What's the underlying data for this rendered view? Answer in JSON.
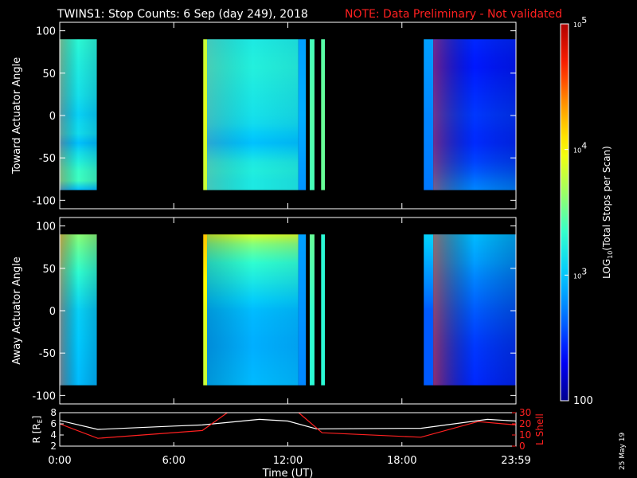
{
  "header": {
    "title": "TWINS1: Stop Counts:  6 Sep (day 249), 2018",
    "note": "NOTE: Data Preliminary - Not validated"
  },
  "footer": {
    "date_stamp": "25 May 19"
  },
  "colors": {
    "background": "#000000",
    "axis": "#ffffff",
    "note": "#ff2020",
    "lshell": "#ff2020",
    "radius": "#ffffff",
    "colormap": [
      "#00008f",
      "#0000ff",
      "#0070ff",
      "#00c8ff",
      "#30ffd0",
      "#a0ff60",
      "#ffff00",
      "#ffa000",
      "#ff2000",
      "#b00000"
    ]
  },
  "chart_data": [
    {
      "type": "heatmap",
      "ylabel": "Toward Actuator Angle",
      "ylim": [
        -110,
        110
      ],
      "yticks": [
        100,
        50,
        0,
        -50,
        -100
      ],
      "ytick_labels": [
        "100",
        "50",
        "0",
        "-50",
        "-100"
      ],
      "xlim": [
        0,
        24
      ],
      "x_units": "hours UT",
      "data_y_range": [
        -88,
        90
      ],
      "data_segments": [
        {
          "x0": 0.0,
          "x1": 1.95,
          "profile": [
            [
              -88,
              2.95
            ],
            [
              -80,
              3.25
            ],
            [
              -75,
              3.45
            ],
            [
              -60,
              3.3
            ],
            [
              -45,
              3.15
            ],
            [
              -35,
              3.05
            ],
            [
              -30,
              2.9
            ],
            [
              -20,
              3.15
            ],
            [
              0,
              3.05
            ],
            [
              25,
              3.15
            ],
            [
              50,
              3.2
            ],
            [
              70,
              3.25
            ],
            [
              90,
              3.3
            ]
          ],
          "tgrad": 0.35
        },
        {
          "x0": 7.55,
          "x1": 7.75,
          "profile": [
            [
              -88,
              3.8
            ],
            [
              0,
              3.9
            ],
            [
              90,
              3.8
            ]
          ],
          "tgrad": 0
        },
        {
          "x0": 7.75,
          "x1": 12.55,
          "profile": [
            [
              -88,
              3.2
            ],
            [
              -75,
              3.2
            ],
            [
              -60,
              3.25
            ],
            [
              -40,
              3.05
            ],
            [
              -30,
              2.95
            ],
            [
              -15,
              3.1
            ],
            [
              0,
              3.15
            ],
            [
              30,
              3.2
            ],
            [
              60,
              3.25
            ],
            [
              90,
              3.2
            ]
          ],
          "tgrad": 0.18
        },
        {
          "x0": 12.55,
          "x1": 12.95,
          "profile": [
            [
              -88,
              2.8
            ],
            [
              0,
              2.9
            ],
            [
              90,
              2.85
            ]
          ],
          "tgrad": 0
        },
        {
          "x0": 13.15,
          "x1": 13.4,
          "profile": [
            [
              -88,
              3.4
            ],
            [
              0,
              3.45
            ],
            [
              90,
              3.4
            ]
          ],
          "tgrad": 0
        },
        {
          "x0": 13.75,
          "x1": 13.95,
          "profile": [
            [
              -88,
              3.5
            ],
            [
              0,
              3.5
            ],
            [
              90,
              3.45
            ]
          ],
          "tgrad": 0
        },
        {
          "x0": 19.15,
          "x1": 19.65,
          "profile": [
            [
              -88,
              2.7
            ],
            [
              0,
              2.75
            ],
            [
              90,
              2.85
            ]
          ],
          "tgrad": 0
        },
        {
          "x0": 19.65,
          "x1": 24.0,
          "profile": [
            [
              -88,
              2.75
            ],
            [
              -60,
              2.55
            ],
            [
              -30,
              2.45
            ],
            [
              0,
              2.5
            ],
            [
              30,
              2.45
            ],
            [
              60,
              2.4
            ],
            [
              90,
              2.45
            ]
          ],
          "tgrad": 0.45
        }
      ]
    },
    {
      "type": "heatmap",
      "ylabel": "Away Actuator Angle",
      "ylim": [
        -110,
        110
      ],
      "yticks": [
        100,
        50,
        0,
        -50,
        -100
      ],
      "ytick_labels": [
        "100",
        "50",
        "0",
        "-50",
        "-100"
      ],
      "xlim": [
        0,
        24
      ],
      "x_units": "hours UT",
      "data_y_range": [
        -88,
        90
      ],
      "data_segments": [
        {
          "x0": 0.0,
          "x1": 1.95,
          "profile": [
            [
              -88,
              2.95
            ],
            [
              -40,
              3.0
            ],
            [
              0,
              3.05
            ],
            [
              25,
              3.2
            ],
            [
              50,
              3.35
            ],
            [
              75,
              3.5
            ],
            [
              90,
              3.6
            ]
          ],
          "tgrad": 0.45
        },
        {
          "x0": 7.55,
          "x1": 7.75,
          "profile": [
            [
              -88,
              3.8
            ],
            [
              0,
              3.9
            ],
            [
              90,
              4.2
            ]
          ],
          "tgrad": 0
        },
        {
          "x0": 7.75,
          "x1": 12.55,
          "profile": [
            [
              -88,
              2.95
            ],
            [
              -40,
              2.9
            ],
            [
              0,
              2.95
            ],
            [
              30,
              3.15
            ],
            [
              60,
              3.35
            ],
            [
              80,
              3.6
            ],
            [
              90,
              3.85
            ]
          ],
          "tgrad": -0.2
        },
        {
          "x0": 12.55,
          "x1": 12.95,
          "profile": [
            [
              -88,
              2.75
            ],
            [
              0,
              2.8
            ],
            [
              90,
              2.85
            ]
          ],
          "tgrad": 0
        },
        {
          "x0": 13.15,
          "x1": 13.4,
          "profile": [
            [
              -88,
              3.3
            ],
            [
              0,
              3.35
            ],
            [
              90,
              3.5
            ]
          ],
          "tgrad": 0
        },
        {
          "x0": 13.75,
          "x1": 13.95,
          "profile": [
            [
              -88,
              3.3
            ],
            [
              0,
              3.3
            ],
            [
              90,
              3.3
            ]
          ],
          "tgrad": 0
        },
        {
          "x0": 19.15,
          "x1": 19.65,
          "profile": [
            [
              -88,
              2.6
            ],
            [
              0,
              2.6
            ],
            [
              90,
              3.05
            ]
          ],
          "tgrad": 0
        },
        {
          "x0": 19.65,
          "x1": 24.0,
          "profile": [
            [
              -88,
              2.45
            ],
            [
              -40,
              2.5
            ],
            [
              0,
              2.6
            ],
            [
              30,
              2.7
            ],
            [
              60,
              2.85
            ],
            [
              90,
              2.95
            ]
          ],
          "tgrad": 0.55
        }
      ]
    },
    {
      "type": "colorbar",
      "label": "LOG10(Total Stops per Scan)",
      "label_parts": [
        "LOG",
        "10",
        "(Total Stops per Scan)"
      ],
      "scale": "log",
      "range": [
        100,
        100000
      ],
      "ticks": [
        {
          "value": 100000,
          "base": "10",
          "exp": "5"
        },
        {
          "value": 10000,
          "base": "10",
          "exp": "4"
        },
        {
          "value": 1000,
          "base": "10",
          "exp": "3"
        },
        {
          "value": 100,
          "label": "100"
        }
      ]
    },
    {
      "type": "line",
      "xlabel": "Time (UT)",
      "xticks": [
        0,
        6,
        12,
        18,
        24
      ],
      "xtick_labels": [
        "0:00",
        "6:00",
        "12:00",
        "18:00",
        "23:59"
      ],
      "left_axis": {
        "label_parts": [
          "R [R",
          "E",
          "]"
        ],
        "ylim": [
          2,
          8
        ],
        "ticks": [
          2,
          4,
          6,
          8
        ],
        "tick_labels": [
          "2",
          "4",
          "6",
          "8"
        ]
      },
      "right_axis": {
        "label": "L Shell",
        "ylim": [
          0,
          30
        ],
        "ticks": [
          0,
          10,
          20,
          30
        ],
        "tick_labels": [
          "0",
          "10",
          "20",
          "30"
        ]
      },
      "series": [
        {
          "name": "R [RE]",
          "axis": "left",
          "x": [
            0,
            2.0,
            6.0,
            7.5,
            10.5,
            12.0,
            13.5,
            19.0,
            22.5,
            24.0
          ],
          "y": [
            6.6,
            5.0,
            5.6,
            5.8,
            6.8,
            6.5,
            5.1,
            5.2,
            6.8,
            6.5
          ]
        },
        {
          "name": "L Shell",
          "axis": "right",
          "x": [
            0,
            2.0,
            7.5,
            8.9,
            12.5,
            13.8,
            19.0,
            22.0,
            24.0
          ],
          "y": [
            20,
            7,
            14,
            31,
            31,
            12,
            8,
            22,
            19
          ]
        }
      ]
    }
  ]
}
